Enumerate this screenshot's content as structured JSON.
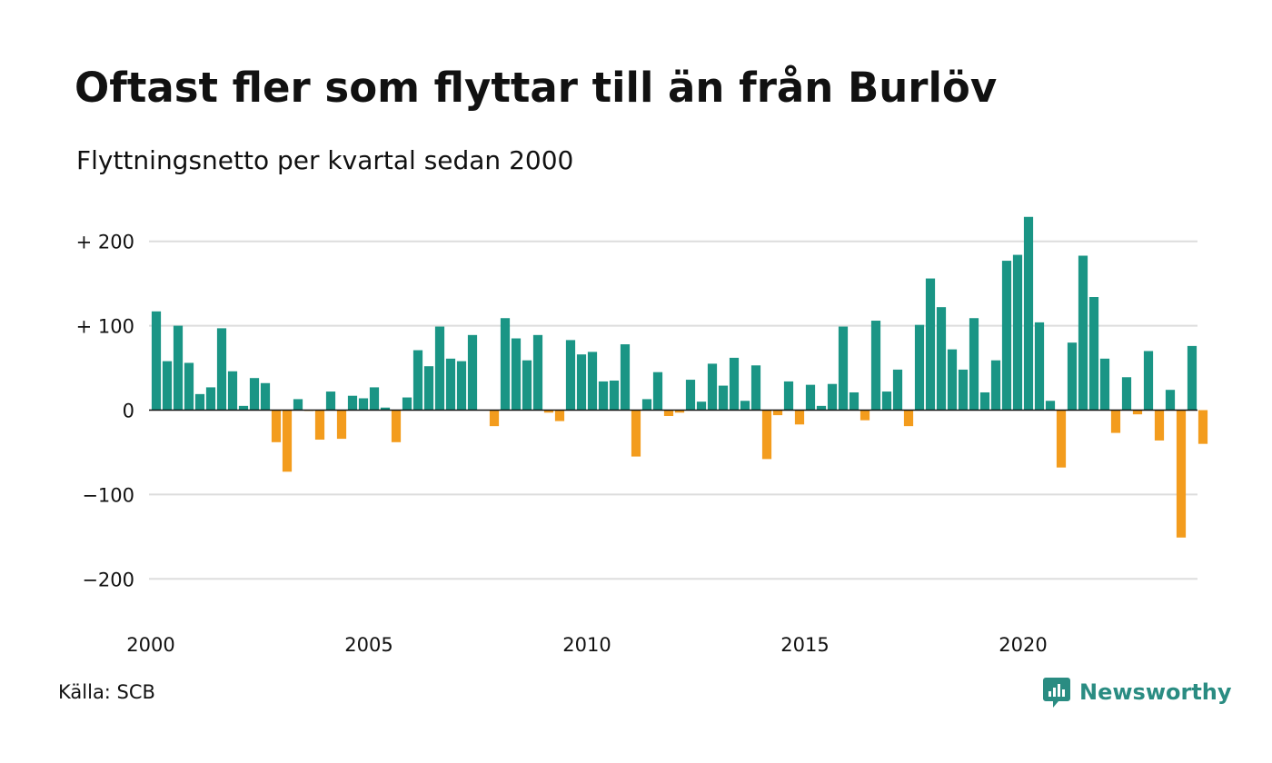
{
  "title": "Oftast fler som flyttar till än från Burlöv",
  "subtitle": "Flyttningsnetto per kvartal sedan 2000",
  "source": "Källa: SCB",
  "brand": "Newsworthy",
  "colors": {
    "positive": "#1a9585",
    "negative": "#f39c1d",
    "grid": "#dddddd",
    "brand": "#2a8c82"
  },
  "chart_data": {
    "type": "bar",
    "x_start": 2000,
    "periods_per_year": 4,
    "ylim": [
      -200,
      230
    ],
    "yticks": [
      {
        "value": 200,
        "label": "+ 200"
      },
      {
        "value": 100,
        "label": "+ 100"
      },
      {
        "value": 0,
        "label": "0"
      },
      {
        "value": -100,
        "label": "−100"
      },
      {
        "value": -200,
        "label": "−200"
      }
    ],
    "xticks": [
      {
        "value": 2000,
        "label": "2000"
      },
      {
        "value": 2005,
        "label": "2005"
      },
      {
        "value": 2010,
        "label": "2010"
      },
      {
        "value": 2015,
        "label": "2015"
      },
      {
        "value": 2020,
        "label": "2020"
      }
    ],
    "grid": true,
    "legend": false,
    "values": [
      117,
      58,
      100,
      56,
      19,
      27,
      97,
      46,
      5,
      38,
      32,
      -38,
      -73,
      13,
      -1,
      -35,
      22,
      -34,
      17,
      14,
      27,
      3,
      -38,
      15,
      71,
      52,
      99,
      61,
      58,
      89,
      0,
      -19,
      109,
      85,
      59,
      89,
      -3,
      -13,
      83,
      66,
      69,
      34,
      35,
      78,
      -55,
      13,
      45,
      -7,
      -3,
      36,
      10,
      55,
      29,
      62,
      11,
      53,
      -58,
      -6,
      34,
      -17,
      30,
      5,
      31,
      99,
      21,
      -12,
      106,
      22,
      48,
      -19,
      101,
      156,
      122,
      72,
      48,
      109,
      21,
      59,
      177,
      184,
      229,
      104,
      11,
      -68,
      80,
      183,
      134,
      61,
      -27,
      39,
      -5,
      70,
      -36,
      24,
      -151,
      76,
      -40
    ]
  }
}
